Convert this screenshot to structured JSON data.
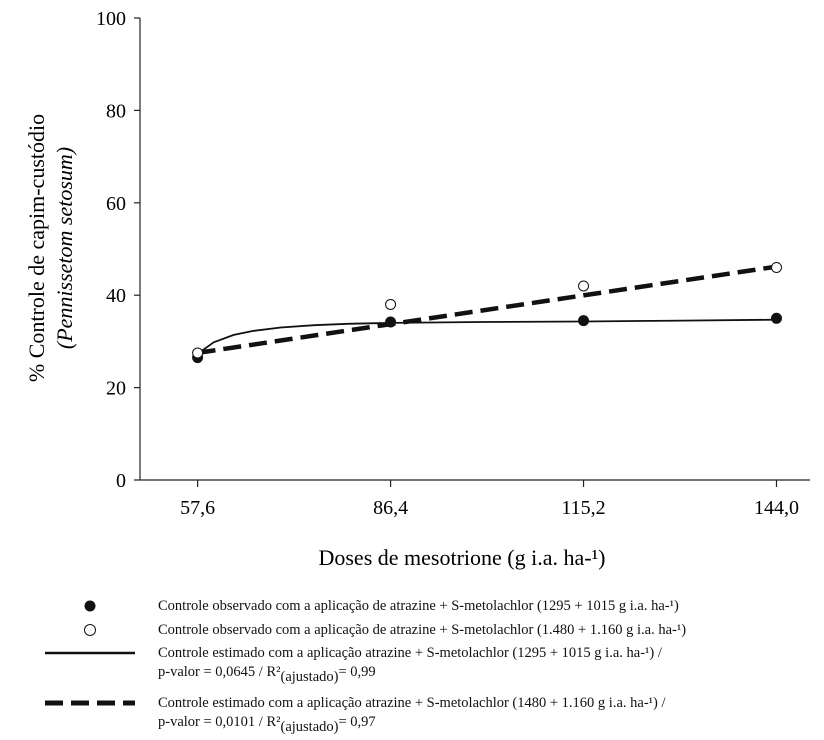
{
  "chart_data": {
    "type": "line",
    "xlabel": "Doses de mesotrione (g i.a. ha-¹)",
    "ylabel_line1": "% Controle de capim-custódio",
    "ylabel_line2": "(Pennissetom setosum)",
    "ylim": [
      0,
      100
    ],
    "yticks": [
      "0",
      "20",
      "40",
      "60",
      "80",
      "100"
    ],
    "xticks": [
      {
        "value": 57.6,
        "label": "57,6"
      },
      {
        "value": 86.4,
        "label": "86,4"
      },
      {
        "value": 115.2,
        "label": "115,2"
      },
      {
        "value": 144.0,
        "label": "144,0"
      }
    ],
    "xlim": [
      49,
      149
    ],
    "grid": false,
    "legend_placement": "below",
    "series": [
      {
        "legend": "Controle observado com a aplicação de atrazine + S-metolachlor (1295 + 1015 g i.a. ha-¹)",
        "kind": "points",
        "marker": "filled-circle",
        "x": [
          57.6,
          86.4,
          115.2,
          144.0
        ],
        "y": [
          26.5,
          34.2,
          34.5,
          35.0
        ]
      },
      {
        "legend": "Controle observado com a aplicação de atrazine + S-metolachlor  (1.480 + 1.160 g i.a. ha-¹)",
        "kind": "points",
        "marker": "open-circle",
        "x": [
          57.6,
          86.4,
          115.2,
          144.0
        ],
        "y": [
          27.5,
          38.0,
          42.0,
          46.0
        ]
      },
      {
        "legend_line1": "Controle estimado com a aplicação atrazine + S-metolachlor (1295 + 1015 g i.a. ha-¹) /",
        "legend_line2_pre": "p-valor = 0,0645 / R²",
        "legend_line2_sub": "(ajustado)",
        "legend_line2_post": "= 0,99",
        "kind": "line",
        "style": "solid",
        "x": [
          57.6,
          60,
          63,
          66,
          70,
          75,
          80,
          86.4,
          100,
          115.2,
          130,
          144.0
        ],
        "y": [
          27.3,
          29.8,
          31.4,
          32.3,
          33.0,
          33.5,
          33.8,
          34.0,
          34.2,
          34.3,
          34.5,
          34.7
        ]
      },
      {
        "legend_line1": "Controle estimado com a aplicação atrazine + S-metolachlor (1480 + 1.160 g i.a. ha-¹) /",
        "legend_line2_pre": "p-valor = 0,0101 / R²",
        "legend_line2_sub": "(ajustado)",
        "legend_line2_post": "= 0,97",
        "kind": "line",
        "style": "dashed",
        "x": [
          57.6,
          144.0
        ],
        "y": [
          27.5,
          46.2
        ]
      }
    ]
  }
}
